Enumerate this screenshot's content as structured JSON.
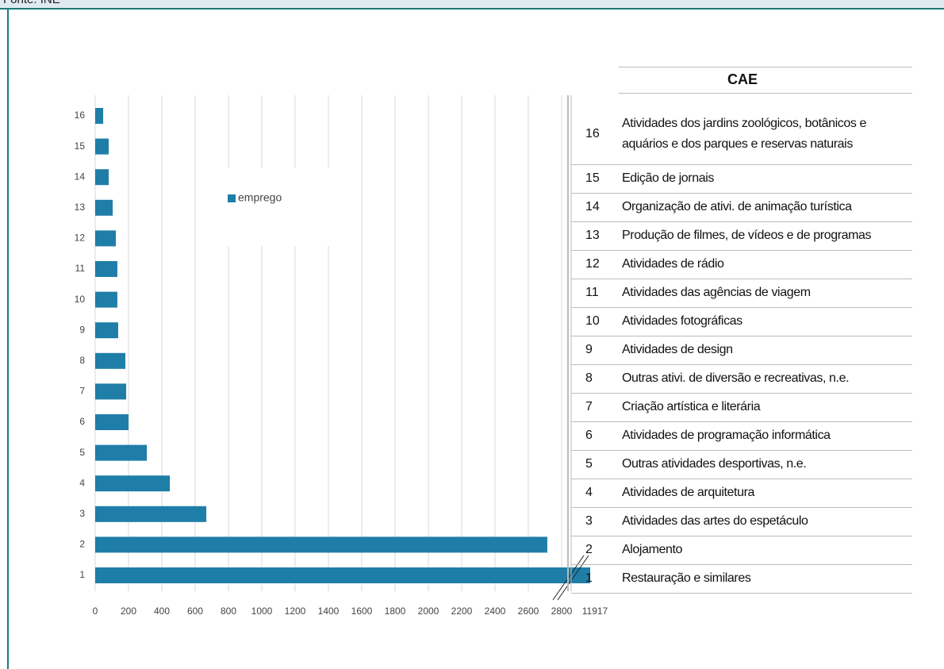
{
  "source": "Fonte: INE",
  "chart_data": {
    "type": "bar",
    "orientation": "horizontal",
    "categories": [
      "1",
      "2",
      "3",
      "4",
      "5",
      "6",
      "7",
      "8",
      "9",
      "10",
      "11",
      "12",
      "13",
      "14",
      "15",
      "16"
    ],
    "series": [
      {
        "name": "emprego",
        "color": "#1f7ea8",
        "values": [
          11917,
          2714,
          667,
          448,
          310,
          200,
          186,
          181,
          138,
          133,
          133,
          124,
          105,
          81,
          81,
          48
        ]
      }
    ],
    "xlim": [
      0,
      11917
    ],
    "xticks": [
      0,
      200,
      400,
      600,
      800,
      1000,
      1200,
      1400,
      1600,
      1800,
      2000,
      2200,
      2400,
      2600,
      2800,
      11917
    ],
    "axis_break": true,
    "grid": true
  },
  "table": {
    "title": "CAE",
    "rows": [
      [
        "16",
        "Atividades dos jardins zoológicos, botânicos e aquários e dos parques e reservas naturais"
      ],
      [
        "15",
        "Edição de jornais"
      ],
      [
        "14",
        "Organização de ativi. de animação turística"
      ],
      [
        "13",
        "Produção de filmes, de vídeos e de programas"
      ],
      [
        "12",
        "Atividades de rádio"
      ],
      [
        "11",
        "Atividades das agências de viagem"
      ],
      [
        "10",
        "Atividades fotográficas"
      ],
      [
        "9",
        "Atividades de design"
      ],
      [
        "8",
        "Outras ativi. de diversão e recreativas, n.e."
      ],
      [
        "7",
        "Criação artística e literária"
      ],
      [
        "6",
        "Atividades de programação informática"
      ],
      [
        "5",
        "Outras atividades desportivas, n.e."
      ],
      [
        "4",
        "Atividades de arquitetura"
      ],
      [
        "3",
        "Atividades das artes do espetáculo"
      ],
      [
        "2",
        "Alojamento"
      ],
      [
        "1",
        "Restauração e similares"
      ]
    ]
  }
}
